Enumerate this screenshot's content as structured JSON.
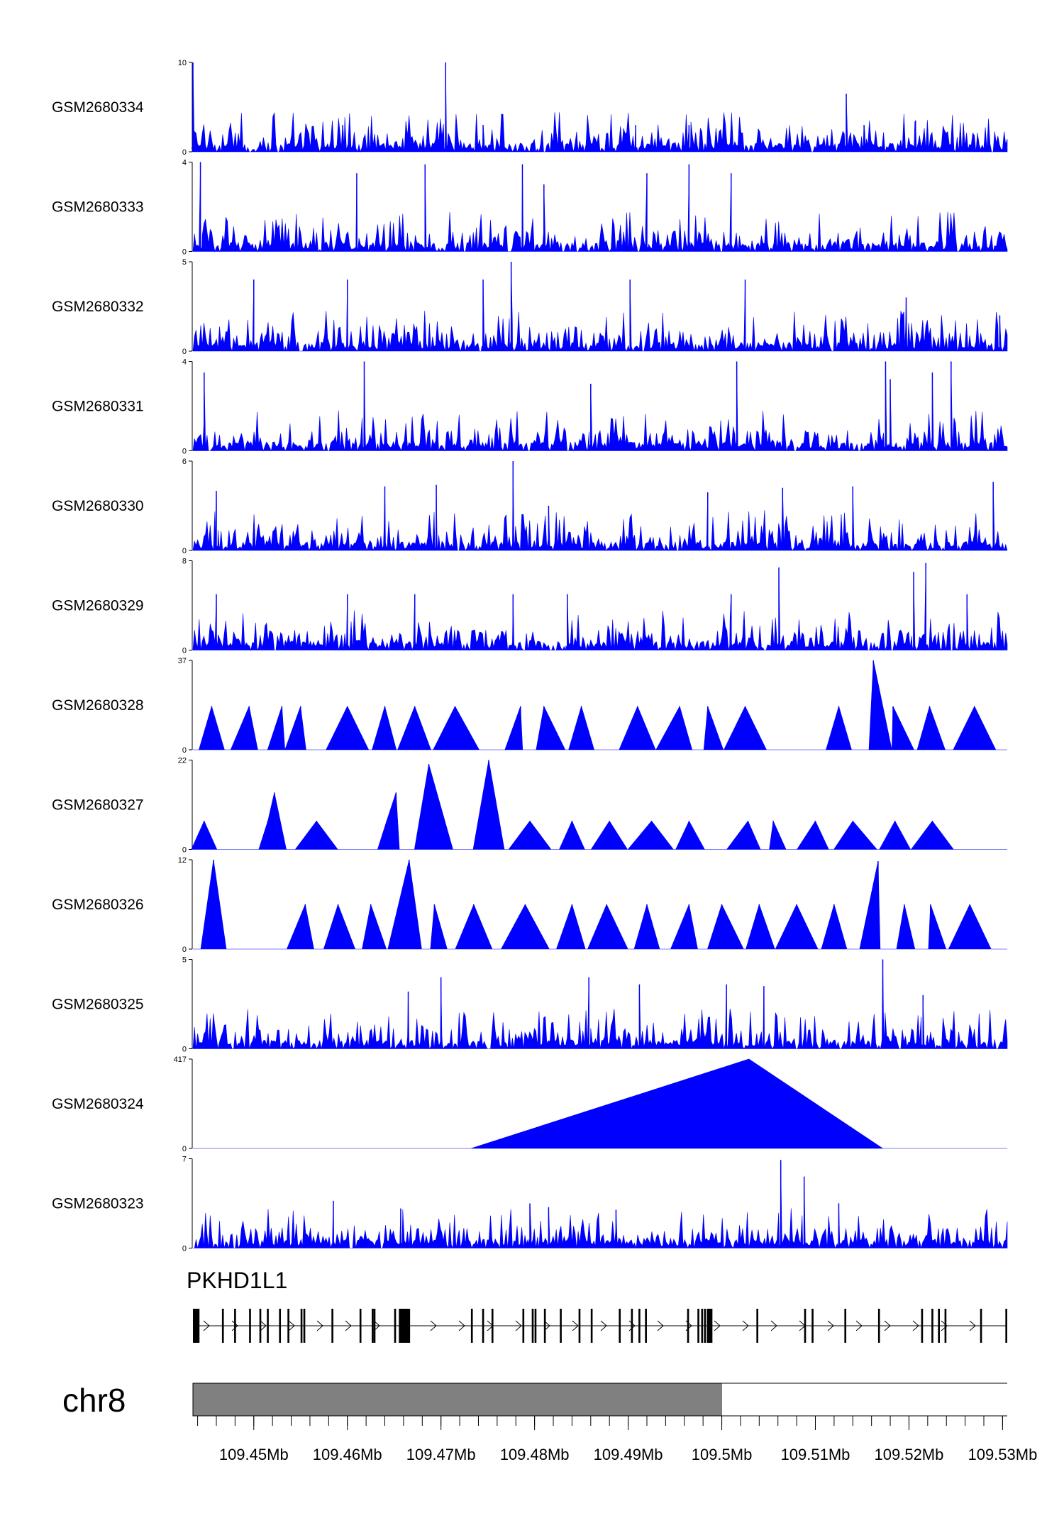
{
  "chart_data": {
    "type": "area",
    "chromosome": "chr8",
    "xlim": [
      109.4435,
      109.5305
    ],
    "tracks": [
      {
        "name": "GSM2680334",
        "ymax": 10,
        "color": "#0000ff",
        "peaks": [
          [
            109.4435,
            10
          ],
          [
            109.4705,
            10
          ],
          [
            109.4595,
            3
          ],
          [
            109.4745,
            3
          ],
          [
            109.4908,
            3
          ],
          [
            109.4965,
            3
          ],
          [
            109.5133,
            6.5
          ],
          [
            109.5207,
            3.5
          ],
          [
            109.5152,
            3
          ]
        ]
      },
      {
        "name": "GSM2680333",
        "ymax": 4,
        "color": "#0000ff",
        "peaks": [
          [
            109.4443,
            4
          ],
          [
            109.4683,
            3.9
          ],
          [
            109.4787,
            3.9
          ],
          [
            109.481,
            3
          ],
          [
            109.4965,
            3.9
          ],
          [
            109.461,
            3.5
          ],
          [
            109.492,
            3.5
          ],
          [
            109.501,
            3.5
          ]
        ]
      },
      {
        "name": "GSM2680332",
        "ymax": 5,
        "color": "#0000ff",
        "peaks": [
          [
            109.4775,
            5
          ],
          [
            109.45,
            4
          ],
          [
            109.46,
            4
          ],
          [
            109.4745,
            4
          ],
          [
            109.4902,
            4
          ],
          [
            109.5025,
            4
          ],
          [
            109.5197,
            3
          ],
          [
            109.5297,
            2
          ]
        ]
      },
      {
        "name": "GSM2680331",
        "ymax": 4,
        "color": "#0000ff",
        "peaks": [
          [
            109.4447,
            3.5
          ],
          [
            109.4618,
            4
          ],
          [
            109.5016,
            4
          ],
          [
            109.5175,
            4
          ],
          [
            109.5245,
            4
          ],
          [
            109.518,
            3.2
          ],
          [
            109.5225,
            3.5
          ],
          [
            109.486,
            3
          ]
        ]
      },
      {
        "name": "GSM2680330",
        "ymax": 6,
        "color": "#0000ff",
        "peaks": [
          [
            109.4777,
            6
          ],
          [
            109.446,
            4
          ],
          [
            109.464,
            4.3
          ],
          [
            109.4695,
            4.4
          ],
          [
            109.4815,
            3
          ],
          [
            109.4985,
            3.9
          ],
          [
            109.5065,
            4.2
          ],
          [
            109.514,
            4.3
          ],
          [
            109.529,
            4.6
          ]
        ]
      },
      {
        "name": "GSM2680329",
        "ymax": 8,
        "color": "#0000ff",
        "peaks": [
          [
            109.5061,
            7.4
          ],
          [
            109.5218,
            7.8
          ],
          [
            109.5205,
            7
          ],
          [
            109.446,
            5
          ],
          [
            109.46,
            5
          ],
          [
            109.4672,
            5
          ],
          [
            109.4777,
            5
          ],
          [
            109.4835,
            5
          ],
          [
            109.501,
            5
          ],
          [
            109.5262,
            5
          ]
        ]
      },
      {
        "name": "GSM2680328",
        "ymax": 37,
        "color": "#0000ff",
        "peaks": [
          [
            109.4455,
            18
          ],
          [
            109.4495,
            18
          ],
          [
            109.453,
            18
          ],
          [
            109.455,
            18
          ],
          [
            109.46,
            18
          ],
          [
            109.464,
            18
          ],
          [
            109.4672,
            18
          ],
          [
            109.4715,
            18
          ],
          [
            109.4785,
            18
          ],
          [
            109.481,
            18
          ],
          [
            109.485,
            18
          ],
          [
            109.491,
            18
          ],
          [
            109.4955,
            18
          ],
          [
            109.4985,
            18
          ],
          [
            109.5025,
            18
          ],
          [
            109.5125,
            18
          ],
          [
            109.5162,
            37
          ],
          [
            109.5183,
            18
          ],
          [
            109.5222,
            18
          ],
          [
            109.527,
            18
          ]
        ]
      },
      {
        "name": "GSM2680327",
        "ymax": 22,
        "color": "#0000ff",
        "peaks": [
          [
            109.4447,
            7
          ],
          [
            109.4515,
            7
          ],
          [
            109.4515,
            7
          ],
          [
            109.4522,
            14
          ],
          [
            109.4567,
            7
          ],
          [
            109.4642,
            7
          ],
          [
            109.4652,
            14
          ],
          [
            109.4687,
            21
          ],
          [
            109.4751,
            22
          ],
          [
            109.4795,
            7
          ],
          [
            109.484,
            7
          ],
          [
            109.488,
            7
          ],
          [
            109.4925,
            7
          ],
          [
            109.4965,
            7
          ],
          [
            109.5028,
            7
          ],
          [
            109.5055,
            7
          ],
          [
            109.51,
            7
          ],
          [
            109.514,
            7
          ],
          [
            109.5185,
            7
          ],
          [
            109.5225,
            7
          ]
        ]
      },
      {
        "name": "GSM2680326",
        "ymax": 12,
        "color": "#0000ff",
        "peaks": [
          [
            109.4457,
            12
          ],
          [
            109.4666,
            12
          ],
          [
            109.4555,
            6
          ],
          [
            109.459,
            6
          ],
          [
            109.4625,
            6
          ],
          [
            109.4693,
            6
          ],
          [
            109.4735,
            6
          ],
          [
            109.479,
            6
          ],
          [
            109.484,
            6
          ],
          [
            109.4877,
            6
          ],
          [
            109.492,
            6
          ],
          [
            109.4965,
            6
          ],
          [
            109.5,
            6
          ],
          [
            109.504,
            6
          ],
          [
            109.508,
            6
          ],
          [
            109.512,
            6
          ],
          [
            109.5167,
            11.8
          ],
          [
            109.5195,
            6
          ],
          [
            109.5223,
            6
          ],
          [
            109.5265,
            6
          ]
        ]
      },
      {
        "name": "GSM2680325",
        "ymax": 5,
        "color": "#0000ff",
        "peaks": [
          [
            109.4665,
            3.2
          ],
          [
            109.47,
            4
          ],
          [
            109.4858,
            4
          ],
          [
            109.4912,
            3.6
          ],
          [
            109.5005,
            3.6
          ],
          [
            109.5045,
            3.5
          ],
          [
            109.5172,
            5
          ],
          [
            109.5215,
            3
          ]
        ]
      },
      {
        "name": "GSM2680324",
        "ymax": 417,
        "color": "#0000ff",
        "triangles": [
          [
            109.4732,
            109.5029,
            109.5172,
            417
          ]
        ]
      },
      {
        "name": "GSM2680323",
        "ymax": 7,
        "color": "#0000ff",
        "peaks": [
          [
            109.5063,
            6.9
          ],
          [
            109.5088,
            5.6
          ],
          [
            109.4585,
            3.7
          ],
          [
            109.4795,
            3.5
          ],
          [
            109.4815,
            3.2
          ],
          [
            109.5125,
            3.5
          ],
          [
            109.4657,
            3.1
          ],
          [
            109.4887,
            3
          ]
        ]
      }
    ],
    "gene": {
      "name": "PKHD1L1",
      "strand": "+",
      "start": 109.4435,
      "end": 109.5305,
      "exons": [
        [
          109.4435,
          109.4442
        ],
        [
          109.4466,
          109.4468
        ],
        [
          109.4479,
          109.4481
        ],
        [
          109.4495,
          109.4497
        ],
        [
          109.4506,
          109.4508
        ],
        [
          109.4514,
          109.4516
        ],
        [
          109.4527,
          109.4529
        ],
        [
          109.4536,
          109.4538
        ],
        [
          109.455,
          109.4552
        ],
        [
          109.4553,
          109.4555
        ],
        [
          109.4583,
          109.4585
        ],
        [
          109.4613,
          109.4615
        ],
        [
          109.4626,
          109.4628
        ],
        [
          109.4628,
          109.463
        ],
        [
          109.465,
          109.4652
        ],
        [
          109.4655,
          109.4667
        ],
        [
          109.4732,
          109.4734
        ],
        [
          109.4744,
          109.4746
        ],
        [
          109.4754,
          109.4756
        ],
        [
          109.4787,
          109.4789
        ],
        [
          109.4797,
          109.4799
        ],
        [
          109.48,
          109.4802
        ],
        [
          109.481,
          109.4812
        ],
        [
          109.4827,
          109.4829
        ],
        [
          109.4847,
          109.4849
        ],
        [
          109.486,
          109.4862
        ],
        [
          109.489,
          109.4892
        ],
        [
          109.4903,
          109.4905
        ],
        [
          109.4911,
          109.4913
        ],
        [
          109.4918,
          109.492
        ],
        [
          109.4963,
          109.4965
        ],
        [
          109.4974,
          109.4976
        ],
        [
          109.4978,
          109.498
        ],
        [
          109.4981,
          109.4983
        ],
        [
          109.4984,
          109.499
        ],
        [
          109.5037,
          109.5039
        ],
        [
          109.5088,
          109.509
        ],
        [
          109.5096,
          109.5098
        ],
        [
          109.5131,
          109.5133
        ],
        [
          109.5167,
          109.5169
        ],
        [
          109.5213,
          109.5215
        ],
        [
          109.5224,
          109.5226
        ],
        [
          109.5231,
          109.5233
        ],
        [
          109.5238,
          109.524
        ],
        [
          109.5276,
          109.5278
        ],
        [
          109.5303,
          109.5305
        ]
      ]
    },
    "ideogram": {
      "chromosome": "chr8",
      "bands": [
        {
          "start": 109.4435,
          "end": 109.5,
          "color": "#808080"
        },
        {
          "start": 109.5,
          "end": 109.5305,
          "color": "#ffffff"
        }
      ]
    },
    "xaxis": {
      "ticks": [
        109.45,
        109.46,
        109.47,
        109.48,
        109.49,
        109.5,
        109.51,
        109.52,
        109.53
      ],
      "tick_labels": [
        "109.45Mb",
        "109.46Mb",
        "109.47Mb",
        "109.48Mb",
        "109.49Mb",
        "109.5Mb",
        "109.51Mb",
        "109.52Mb",
        "109.53Mb"
      ],
      "minor_step": 0.002
    }
  }
}
